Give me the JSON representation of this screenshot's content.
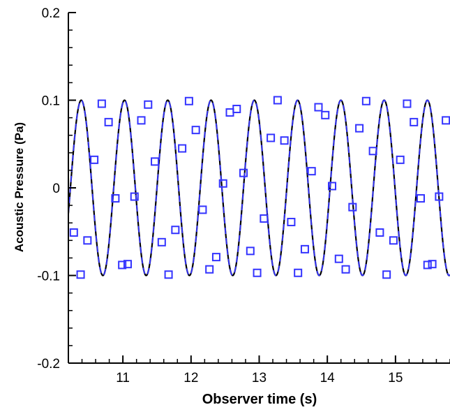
{
  "chart_data": {
    "type": "line",
    "title": "",
    "xlabel": "Observer time (s)",
    "ylabel": "Acoustic Pressure (Pa)",
    "xlim": [
      10.2,
      15.8
    ],
    "ylim": [
      -0.2,
      0.2
    ],
    "xticks": [
      11,
      12,
      13,
      14,
      15
    ],
    "xtick_labels": [
      "11",
      "12",
      "13",
      "14",
      "15"
    ],
    "yticks": [
      -0.2,
      -0.1,
      0,
      0.1,
      0.2
    ],
    "ytick_labels": [
      "-0.2",
      "-0.1",
      "0",
      "0.1",
      "0.2"
    ],
    "grid": false,
    "legend": "none",
    "series": [
      {
        "style": "solid-line",
        "color": "#000000",
        "function": "0.1*sin(2*pi*(t-10.23)/0.635)",
        "amplitude": 0.1,
        "period": 0.635,
        "zero_crossing_t": 10.23
      },
      {
        "style": "dashed-line",
        "color": "#3333ff",
        "function": "0.1*sin(2*pi*(t-10.23)/0.635)",
        "amplitude": 0.1,
        "period": 0.635,
        "zero_crossing_t": 10.23
      },
      {
        "style": "square-markers",
        "color": "#3333ff",
        "points": [
          [
            10.28,
            -0.051
          ],
          [
            10.38,
            -0.099
          ],
          [
            10.48,
            -0.06
          ],
          [
            10.58,
            0.032
          ],
          [
            10.69,
            0.096
          ],
          [
            10.79,
            0.075
          ],
          [
            10.89,
            -0.012
          ],
          [
            10.99,
            -0.088
          ],
          [
            11.07,
            -0.087
          ],
          [
            11.17,
            -0.01
          ],
          [
            11.27,
            0.077
          ],
          [
            11.37,
            0.095
          ],
          [
            11.47,
            0.03
          ],
          [
            11.57,
            -0.062
          ],
          [
            11.67,
            -0.099
          ],
          [
            11.77,
            -0.048
          ],
          [
            11.87,
            0.045
          ],
          [
            11.97,
            0.099
          ],
          [
            12.07,
            0.066
          ],
          [
            12.17,
            -0.025
          ],
          [
            12.27,
            -0.093
          ],
          [
            12.37,
            -0.079
          ],
          [
            12.47,
            0.005
          ],
          [
            12.57,
            0.086
          ],
          [
            12.67,
            0.09
          ],
          [
            12.77,
            0.017
          ],
          [
            12.87,
            -0.072
          ],
          [
            12.97,
            -0.097
          ],
          [
            13.07,
            -0.035
          ],
          [
            13.17,
            0.057
          ],
          [
            13.27,
            0.1
          ],
          [
            13.37,
            0.054
          ],
          [
            13.47,
            -0.039
          ],
          [
            13.57,
            -0.097
          ],
          [
            13.67,
            -0.07
          ],
          [
            13.77,
            0.019
          ],
          [
            13.87,
            0.092
          ],
          [
            13.97,
            0.083
          ],
          [
            14.07,
            0.002
          ],
          [
            14.17,
            -0.081
          ],
          [
            14.27,
            -0.093
          ],
          [
            14.37,
            -0.022
          ],
          [
            14.47,
            0.068
          ],
          [
            14.57,
            0.099
          ],
          [
            14.67,
            0.042
          ],
          [
            14.77,
            -0.051
          ],
          [
            14.87,
            -0.099
          ],
          [
            14.97,
            -0.06
          ],
          [
            15.07,
            0.032
          ],
          [
            15.17,
            0.096
          ],
          [
            15.27,
            0.075
          ],
          [
            15.37,
            -0.012
          ],
          [
            15.47,
            -0.088
          ],
          [
            15.54,
            -0.087
          ],
          [
            15.64,
            -0.01
          ],
          [
            15.74,
            0.077
          ]
        ]
      }
    ]
  }
}
